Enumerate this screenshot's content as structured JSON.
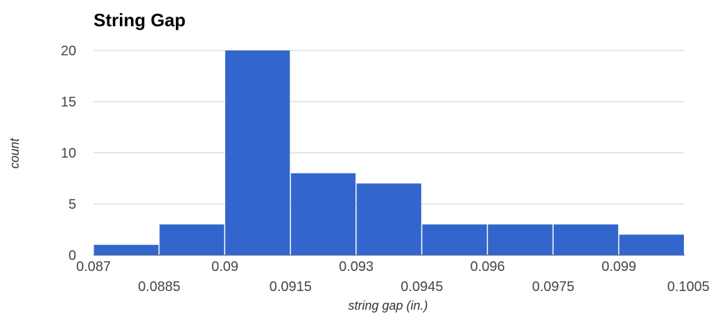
{
  "chart_data": {
    "type": "bar",
    "title": "String Gap",
    "xlabel": "string gap (in.)",
    "ylabel": "count",
    "bins": [
      {
        "start": 0.087,
        "end": 0.0885,
        "count": 1
      },
      {
        "start": 0.0885,
        "end": 0.09,
        "count": 3
      },
      {
        "start": 0.09,
        "end": 0.0915,
        "count": 20
      },
      {
        "start": 0.0915,
        "end": 0.093,
        "count": 8
      },
      {
        "start": 0.093,
        "end": 0.0945,
        "count": 7
      },
      {
        "start": 0.0945,
        "end": 0.096,
        "count": 3
      },
      {
        "start": 0.096,
        "end": 0.0975,
        "count": 3
      },
      {
        "start": 0.0975,
        "end": 0.099,
        "count": 3
      },
      {
        "start": 0.099,
        "end": 0.1005,
        "count": 2
      }
    ],
    "xticks_upper": [
      "0.087",
      "0.09",
      "0.093",
      "0.096",
      "0.099"
    ],
    "xticks_lower": [
      "0.0885",
      "0.0915",
      "0.0945",
      "0.0975",
      "0.1005"
    ],
    "yticks": [
      "0",
      "5",
      "10",
      "15",
      "20"
    ],
    "ylim": [
      0,
      20
    ],
    "xlim": [
      0.087,
      0.1005
    ],
    "grid": true,
    "legend": "none",
    "bar_color": "#3366cc",
    "grid_color": "#cccccc"
  }
}
